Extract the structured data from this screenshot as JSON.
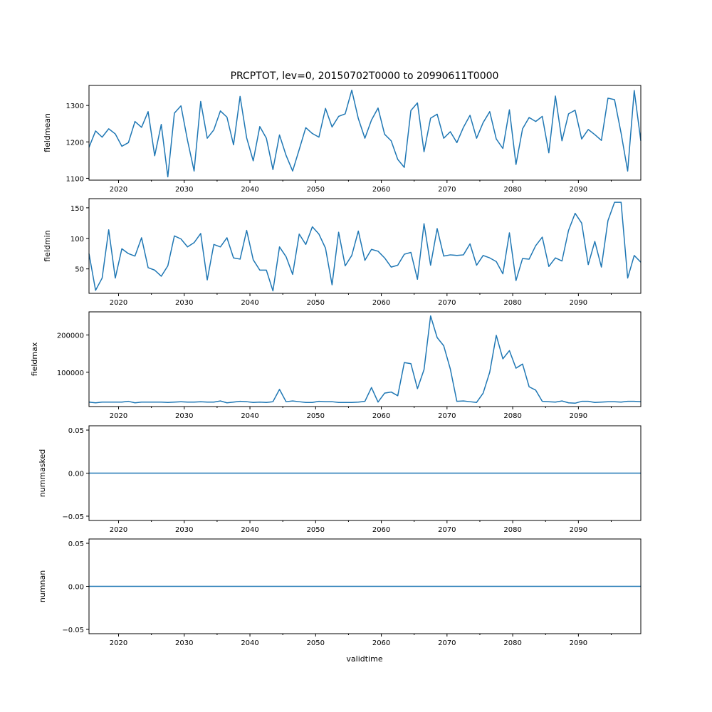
{
  "chart_data": {
    "type": "line",
    "title": "PRCPTOT, lev=0, 20150702T0000 to 20990611T0000",
    "xlabel": "validtime",
    "x_range": [
      2015.5,
      2099.5
    ],
    "x_ticks": [
      2020,
      2030,
      2040,
      2050,
      2060,
      2070,
      2080,
      2090
    ],
    "x_tick_labels": [
      "2020",
      "2030",
      "2040",
      "2050",
      "2060",
      "2070",
      "2080",
      "2090"
    ],
    "x_minor_ticks": [
      2025,
      2035,
      2045,
      2055,
      2065,
      2075,
      2085,
      2095
    ],
    "line_color": "#1f77b4",
    "x": [
      2015.5,
      2016.5,
      2017.5,
      2018.5,
      2019.5,
      2020.5,
      2021.5,
      2022.5,
      2023.5,
      2024.5,
      2025.5,
      2026.5,
      2027.5,
      2028.5,
      2029.5,
      2030.5,
      2031.5,
      2032.5,
      2033.5,
      2034.5,
      2035.5,
      2036.5,
      2037.5,
      2038.5,
      2039.5,
      2040.5,
      2041.5,
      2042.5,
      2043.5,
      2044.5,
      2045.5,
      2046.5,
      2047.5,
      2048.5,
      2049.5,
      2050.5,
      2051.5,
      2052.5,
      2053.5,
      2054.5,
      2055.5,
      2056.5,
      2057.5,
      2058.5,
      2059.5,
      2060.5,
      2061.5,
      2062.5,
      2063.5,
      2064.5,
      2065.5,
      2066.5,
      2067.5,
      2068.5,
      2069.5,
      2070.5,
      2071.5,
      2072.5,
      2073.5,
      2074.5,
      2075.5,
      2076.5,
      2077.5,
      2078.5,
      2079.5,
      2080.5,
      2081.5,
      2082.5,
      2083.5,
      2084.5,
      2085.5,
      2086.5,
      2087.5,
      2088.5,
      2089.5,
      2090.5,
      2091.5,
      2092.5,
      2093.5,
      2094.5,
      2095.5,
      2096.5,
      2097.5,
      2098.5,
      2099.5
    ],
    "panels": [
      {
        "ylabel": "fieldmean",
        "ylim": [
          1095,
          1355
        ],
        "y_ticks": [
          1100,
          1200,
          1300
        ],
        "y_tick_labels": [
          "1100",
          "1200",
          "1300"
        ],
        "values": [
          1185,
          1230,
          1213,
          1236,
          1222,
          1188,
          1198,
          1256,
          1240,
          1283,
          1162,
          1248,
          1104,
          1279,
          1299,
          1204,
          1120,
          1311,
          1210,
          1233,
          1285,
          1268,
          1192,
          1325,
          1211,
          1148,
          1242,
          1210,
          1124,
          1219,
          1163,
          1120,
          1179,
          1239,
          1223,
          1213,
          1292,
          1241,
          1270,
          1277,
          1342,
          1264,
          1210,
          1260,
          1293,
          1221,
          1203,
          1152,
          1130,
          1286,
          1307,
          1173,
          1265,
          1276,
          1210,
          1228,
          1198,
          1240,
          1273,
          1210,
          1253,
          1283,
          1208,
          1182,
          1288,
          1138,
          1236,
          1267,
          1256,
          1270,
          1170,
          1326,
          1203,
          1277,
          1287,
          1208,
          1234,
          1220,
          1204,
          1320,
          1316,
          1224,
          1120,
          1341,
          1203
        ]
      },
      {
        "ylabel": "fieldmin",
        "ylim": [
          10,
          165
        ],
        "y_ticks": [
          50,
          100,
          150
        ],
        "y_tick_labels": [
          "50",
          "100",
          "150"
        ],
        "values": [
          75,
          15,
          35,
          114,
          35,
          83,
          75,
          71,
          101,
          52,
          48,
          38,
          55,
          104,
          99,
          86,
          93,
          108,
          32,
          90,
          86,
          101,
          68,
          66,
          113,
          65,
          48,
          48,
          14,
          86,
          70,
          41,
          107,
          90,
          119,
          107,
          84,
          24,
          110,
          55,
          72,
          112,
          64,
          82,
          79,
          68,
          53,
          56,
          74,
          77,
          33,
          124,
          56,
          116,
          71,
          73,
          72,
          73,
          91,
          56,
          72,
          68,
          62,
          42,
          109,
          31,
          67,
          66,
          88,
          102,
          54,
          68,
          63,
          113,
          141,
          125,
          57,
          95,
          53,
          129,
          159,
          159,
          35,
          72,
          61
        ]
      },
      {
        "ylabel": "fieldmax",
        "ylim": [
          8000,
          262000
        ],
        "y_ticks": [
          100000,
          200000
        ],
        "y_tick_labels": [
          "100000",
          "200000"
        ],
        "values": [
          20000,
          18000,
          20000,
          20000,
          20000,
          20000,
          22000,
          18000,
          20000,
          20000,
          20000,
          20000,
          19000,
          20000,
          21000,
          20000,
          20000,
          21000,
          20000,
          20000,
          23000,
          18000,
          20000,
          22000,
          21000,
          19000,
          20000,
          19000,
          21000,
          54000,
          21000,
          23000,
          21000,
          19000,
          19000,
          22000,
          21000,
          21000,
          19000,
          19000,
          19000,
          20000,
          22000,
          59000,
          20000,
          44000,
          47000,
          37000,
          126000,
          123000,
          56000,
          107000,
          251000,
          193000,
          171000,
          109000,
          22000,
          23000,
          21000,
          19000,
          44000,
          100000,
          199000,
          136000,
          158000,
          111000,
          122000,
          61000,
          52000,
          22000,
          21000,
          20000,
          23000,
          18000,
          17000,
          22000,
          22000,
          19000,
          20000,
          21000,
          21000,
          20000,
          22000,
          22000,
          21000
        ]
      },
      {
        "ylabel": "nummasked",
        "ylim": [
          -0.055,
          0.055
        ],
        "y_ticks": [
          -0.05,
          0.0,
          0.05
        ],
        "y_tick_labels": [
          "−0.05",
          "0.00",
          "0.05"
        ],
        "values": [
          0,
          0,
          0,
          0,
          0,
          0,
          0,
          0,
          0,
          0,
          0,
          0,
          0,
          0,
          0,
          0,
          0,
          0,
          0,
          0,
          0,
          0,
          0,
          0,
          0,
          0,
          0,
          0,
          0,
          0,
          0,
          0,
          0,
          0,
          0,
          0,
          0,
          0,
          0,
          0,
          0,
          0,
          0,
          0,
          0,
          0,
          0,
          0,
          0,
          0,
          0,
          0,
          0,
          0,
          0,
          0,
          0,
          0,
          0,
          0,
          0,
          0,
          0,
          0,
          0,
          0,
          0,
          0,
          0,
          0,
          0,
          0,
          0,
          0,
          0,
          0,
          0,
          0,
          0,
          0,
          0,
          0,
          0,
          0,
          0
        ]
      },
      {
        "ylabel": "numnan",
        "ylim": [
          -0.055,
          0.055
        ],
        "y_ticks": [
          -0.05,
          0.0,
          0.05
        ],
        "y_tick_labels": [
          "−0.05",
          "0.00",
          "0.05"
        ],
        "values": [
          0,
          0,
          0,
          0,
          0,
          0,
          0,
          0,
          0,
          0,
          0,
          0,
          0,
          0,
          0,
          0,
          0,
          0,
          0,
          0,
          0,
          0,
          0,
          0,
          0,
          0,
          0,
          0,
          0,
          0,
          0,
          0,
          0,
          0,
          0,
          0,
          0,
          0,
          0,
          0,
          0,
          0,
          0,
          0,
          0,
          0,
          0,
          0,
          0,
          0,
          0,
          0,
          0,
          0,
          0,
          0,
          0,
          0,
          0,
          0,
          0,
          0,
          0,
          0,
          0,
          0,
          0,
          0,
          0,
          0,
          0,
          0,
          0,
          0,
          0,
          0,
          0,
          0,
          0,
          0,
          0,
          0,
          0,
          0,
          0
        ]
      }
    ]
  }
}
